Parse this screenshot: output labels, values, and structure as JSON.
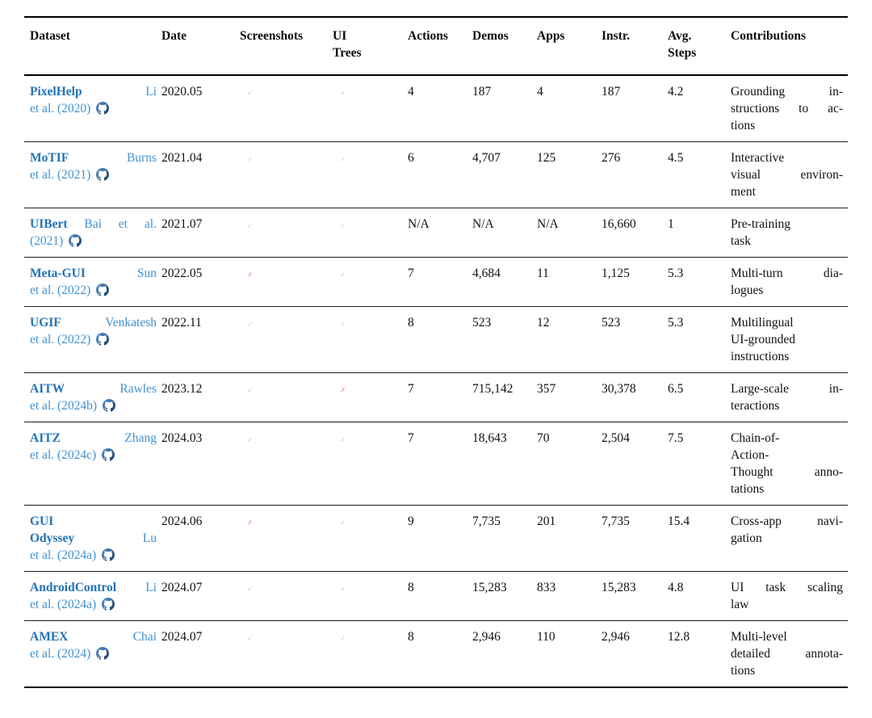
{
  "colors": {
    "dataset_name": "#2273b8",
    "citation_link": "#4292d2",
    "github_light": "#5b9bd5",
    "github_dark": "#16355e",
    "check": "#a5d9a0",
    "cross": "#eda79e",
    "text": "#111111",
    "rule": "#000000"
  },
  "marks": {
    "check": "✓",
    "cross": "✗"
  },
  "table": {
    "columns": [
      {
        "key": "dataset",
        "label_lines": [
          "Dataset"
        ]
      },
      {
        "key": "date",
        "label_lines": [
          "Date"
        ]
      },
      {
        "key": "screenshots",
        "label_lines": [
          "Screenshots"
        ]
      },
      {
        "key": "ui-trees",
        "label_lines": [
          "UI",
          "Trees"
        ]
      },
      {
        "key": "actions",
        "label_lines": [
          "Actions"
        ]
      },
      {
        "key": "demos",
        "label_lines": [
          "Demos"
        ]
      },
      {
        "key": "apps",
        "label_lines": [
          "Apps"
        ]
      },
      {
        "key": "instr",
        "label_lines": [
          "Instr."
        ]
      },
      {
        "key": "avg-steps",
        "label_lines": [
          "Avg.",
          "Steps"
        ]
      },
      {
        "key": "contributions",
        "label_lines": [
          "Contributions"
        ]
      }
    ],
    "rows": [
      {
        "name_lines": [
          {
            "bold": "PixelHelp",
            "cite": "Li",
            "justify": true
          },
          {
            "cite": "et al. (2020)",
            "github": true
          }
        ],
        "date": "2020.05",
        "screenshots": "check",
        "ui_trees": "check",
        "actions": "4",
        "demos": "187",
        "apps": "4",
        "instr": "187",
        "avg_steps": "4.2",
        "contributions": [
          "Grounding in-",
          "structions to ac-",
          "tions"
        ]
      },
      {
        "name_lines": [
          {
            "bold": "MoTIF",
            "cite": "Burns",
            "justify": true
          },
          {
            "cite": "et al. (2021)",
            "github": true
          }
        ],
        "date": "2021.04",
        "screenshots": "check",
        "ui_trees": "check",
        "actions": "6",
        "demos": "4,707",
        "apps": "125",
        "instr": "276",
        "avg_steps": "4.5",
        "contributions": [
          "Interactive",
          "visual environ-",
          "ment"
        ]
      },
      {
        "name_lines": [
          {
            "bold": "UIBert",
            "cite": "Bai et al.",
            "justify": true
          },
          {
            "cite": "(2021)",
            "github": true
          }
        ],
        "date": "2021.07",
        "screenshots": "check",
        "ui_trees": "check",
        "actions": "N/A",
        "demos": "N/A",
        "apps": "N/A",
        "instr": "16,660",
        "avg_steps": "1",
        "contributions": [
          "Pre-training",
          "task"
        ]
      },
      {
        "name_lines": [
          {
            "bold": "Meta-GUI",
            "cite": "Sun",
            "justify": true
          },
          {
            "cite": "et al. (2022)",
            "github": true
          }
        ],
        "date": "2022.05",
        "screenshots": "cross",
        "ui_trees": "check",
        "actions": "7",
        "demos": "4,684",
        "apps": "11",
        "instr": "1,125",
        "avg_steps": "5.3",
        "contributions": [
          "Multi-turn dia-",
          "logues"
        ]
      },
      {
        "name_lines": [
          {
            "bold": "UGIF",
            "cite": "Venkatesh",
            "justify": true
          },
          {
            "cite": "et al. (2022)",
            "github": true
          }
        ],
        "date": "2022.11",
        "screenshots": "check",
        "ui_trees": "check",
        "actions": "8",
        "demos": "523",
        "apps": "12",
        "instr": "523",
        "avg_steps": "5.3",
        "contributions": [
          "Multilingual",
          "UI-grounded",
          "instructions"
        ]
      },
      {
        "name_lines": [
          {
            "bold": "AITW",
            "cite": "Rawles",
            "justify": true
          },
          {
            "cite": "et al. (2024b)",
            "github": true
          }
        ],
        "date": "2023.12",
        "screenshots": "check",
        "ui_trees": "cross",
        "actions": "7",
        "demos": "715,142",
        "apps": "357",
        "instr": "30,378",
        "avg_steps": "6.5",
        "contributions": [
          "Large-scale in-",
          "teractions"
        ]
      },
      {
        "name_lines": [
          {
            "bold": "AITZ",
            "cite": "Zhang",
            "justify": true
          },
          {
            "cite": "et al. (2024c)",
            "github": true
          }
        ],
        "date": "2024.03",
        "screenshots": "check",
        "ui_trees": "check",
        "actions": "7",
        "demos": "18,643",
        "apps": "70",
        "instr": "2,504",
        "avg_steps": "7.5",
        "contributions": [
          "Chain-of-",
          "Action-",
          "Thought anno-",
          "tations"
        ]
      },
      {
        "name_lines": [
          {
            "bold": "GUI",
            "justify": true
          },
          {
            "bold": "Odyssey",
            "cite": "Lu",
            "justify": true
          },
          {
            "cite": "et al. (2024a)",
            "github": true
          }
        ],
        "date": "2024.06",
        "screenshots": "cross",
        "ui_trees": "check",
        "actions": "9",
        "demos": "7,735",
        "apps": "201",
        "instr": "7,735",
        "avg_steps": "15.4",
        "contributions": [
          "Cross-app navi-",
          "gation"
        ]
      },
      {
        "name_lines": [
          {
            "bold": "AndroidControl",
            "cite": "Li",
            "justify": true
          },
          {
            "cite": "et al. (2024a)",
            "github": true
          }
        ],
        "date": "2024.07",
        "screenshots": "check",
        "ui_trees": "check",
        "actions": "8",
        "demos": "15,283",
        "apps": "833",
        "instr": "15,283",
        "avg_steps": "4.8",
        "contributions": [
          "UI task scaling",
          "law"
        ]
      },
      {
        "name_lines": [
          {
            "bold": "AMEX",
            "cite": "Chai",
            "justify": true
          },
          {
            "cite": "et al. (2024)",
            "github": true
          }
        ],
        "date": "2024.07",
        "screenshots": "check",
        "ui_trees": "check",
        "actions": "8",
        "demos": "2,946",
        "apps": "110",
        "instr": "2,946",
        "avg_steps": "12.8",
        "contributions": [
          "Multi-level",
          "detailed annota-",
          "tions"
        ]
      }
    ]
  }
}
